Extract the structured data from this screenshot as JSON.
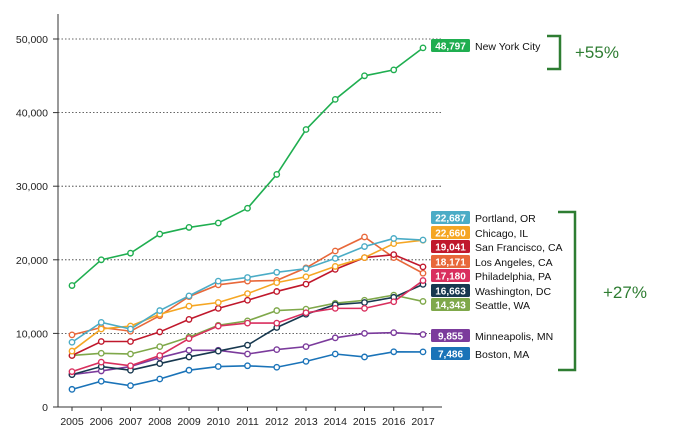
{
  "chart_data": {
    "type": "line",
    "title": "",
    "xlabel": "",
    "ylabel": "",
    "x": [
      2005,
      2006,
      2007,
      2008,
      2009,
      2010,
      2011,
      2012,
      2013,
      2014,
      2015,
      2016,
      2017
    ],
    "x_tick_labels": [
      "2005",
      "2006",
      "2007",
      "2008",
      "2009",
      "2010",
      "2011",
      "2012",
      "2013",
      "2014",
      "2015",
      "2016",
      "2017"
    ],
    "ylim": [
      0,
      55000
    ],
    "y_ticks": [
      0,
      10000,
      20000,
      30000,
      40000,
      50000
    ],
    "y_tick_labels": [
      "0",
      "10,000",
      "20,000",
      "30,000",
      "40,000",
      "50,000"
    ],
    "series": [
      {
        "name": "New York City",
        "label": "48,797",
        "color": "#1fae50",
        "values": [
          16500,
          20000,
          20900,
          23500,
          24400,
          25000,
          27000,
          31600,
          37700,
          41800,
          45000,
          45800,
          48797
        ]
      },
      {
        "name": "Portland, OR",
        "label": "22,687",
        "color": "#4bacc6",
        "values": [
          8800,
          11500,
          10600,
          13100,
          15100,
          17100,
          17600,
          18300,
          18800,
          20200,
          21800,
          22900,
          22687
        ]
      },
      {
        "name": "Chicago, IL",
        "label": "22,660",
        "color": "#f5a623",
        "values": [
          7600,
          10600,
          11000,
          12600,
          13700,
          14200,
          15400,
          16900,
          17700,
          19100,
          20300,
          22200,
          22660
        ]
      },
      {
        "name": "San Francisco, CA",
        "label": "19,041",
        "color": "#c0182c",
        "values": [
          7000,
          8900,
          8900,
          10200,
          11900,
          13400,
          14500,
          15700,
          16700,
          18700,
          20300,
          20700,
          19041
        ]
      },
      {
        "name": "Los Angeles, CA",
        "label": "18,171",
        "color": "#e8683a",
        "values": [
          9800,
          10800,
          10300,
          12400,
          15000,
          16600,
          17100,
          17200,
          18900,
          21200,
          23100,
          20300,
          18171
        ]
      },
      {
        "name": "Philadelphia, PA",
        "label": "17,180",
        "color": "#d92f5e",
        "values": [
          4800,
          6100,
          5600,
          7000,
          9300,
          11000,
          11400,
          11400,
          12800,
          13400,
          13400,
          14300,
          17180
        ]
      },
      {
        "name": "Washington, DC",
        "label": "16,663",
        "color": "#17384f",
        "values": [
          4400,
          5500,
          5000,
          5900,
          6800,
          7600,
          8400,
          10800,
          12600,
          13900,
          14200,
          14900,
          16663
        ]
      },
      {
        "name": "Seattle, WA",
        "label": "14,343",
        "color": "#7fa84a",
        "values": [
          7000,
          7300,
          7200,
          8200,
          9500,
          11100,
          11700,
          13100,
          13300,
          14100,
          14500,
          15200,
          14343
        ]
      },
      {
        "name": "Minneapolis, MN",
        "label": "9,855",
        "color": "#7b3b9c",
        "values": [
          4400,
          4900,
          5500,
          6700,
          7700,
          7700,
          7200,
          7800,
          8200,
          9400,
          10000,
          10100,
          9855
        ]
      },
      {
        "name": "Boston, MA",
        "label": "7,486",
        "color": "#1a73b8",
        "values": [
          2400,
          3500,
          2900,
          3800,
          5000,
          5500,
          5600,
          5400,
          6200,
          7200,
          6800,
          7500,
          7486
        ]
      }
    ],
    "annotations": [
      {
        "text": "+55%",
        "color": "#2e7d32",
        "applies_to": [
          "New York City"
        ]
      },
      {
        "text": "+27%",
        "color": "#2e7d32",
        "applies_to": [
          "Portland, OR",
          "Chicago, IL",
          "San Francisco, CA",
          "Los Angeles, CA",
          "Philadelphia, PA",
          "Washington, DC",
          "Seattle, WA",
          "Minneapolis, MN",
          "Boston, MA"
        ]
      }
    ]
  }
}
